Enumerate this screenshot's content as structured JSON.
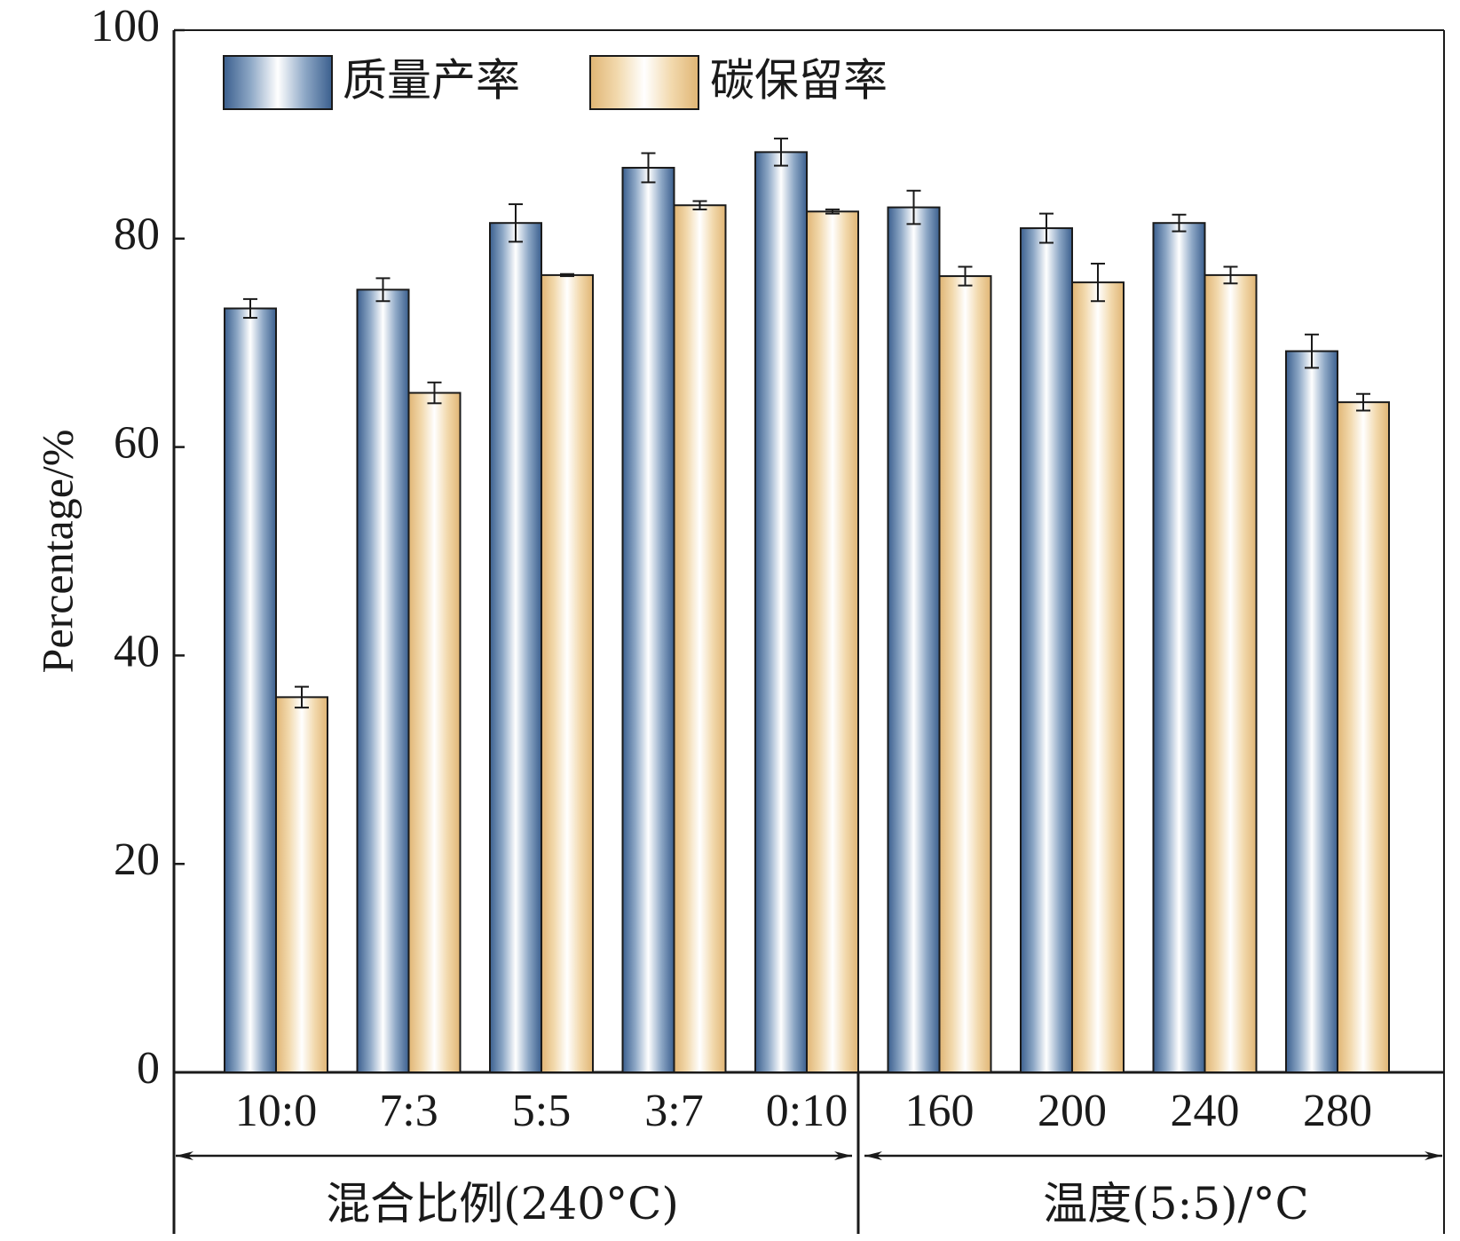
{
  "chart_data": {
    "type": "bar",
    "ylabel": "Percentage/%",
    "ylim": [
      0,
      100
    ],
    "yticks": [
      "0",
      "20",
      "40",
      "60",
      "80",
      "100"
    ],
    "categories": [
      "10:0",
      "7:3",
      "5:5",
      "3:7",
      "0:10",
      "160",
      "200",
      "240",
      "280"
    ],
    "groups": [
      {
        "label": "混合比例(240°C)",
        "categories": [
          "10:0",
          "7:3",
          "5:5",
          "3:7",
          "0:10"
        ]
      },
      {
        "label": "温度(5:5)/°C",
        "categories": [
          "160",
          "200",
          "240",
          "280"
        ]
      }
    ],
    "series": [
      {
        "name": "质量产率",
        "values": [
          73.3,
          75.1,
          81.5,
          86.8,
          88.3,
          83.0,
          81.0,
          81.5,
          69.2
        ],
        "errors": [
          0.9,
          1.1,
          1.8,
          1.4,
          1.3,
          1.6,
          1.4,
          0.8,
          1.6
        ]
      },
      {
        "name": "碳保留率",
        "values": [
          36.0,
          65.2,
          76.5,
          83.2,
          82.6,
          76.4,
          75.8,
          76.5,
          64.3
        ],
        "errors": [
          1.0,
          1.0,
          0.1,
          0.4,
          0.2,
          0.9,
          1.8,
          0.8,
          0.8
        ]
      }
    ],
    "colors": {
      "series1_edge": "#2f4f78",
      "series1_dark": "#3b6191",
      "series2_edge": "#c89b5a",
      "series2_dark": "#e2b878"
    },
    "legend_position": "top-left",
    "grid": false
  }
}
